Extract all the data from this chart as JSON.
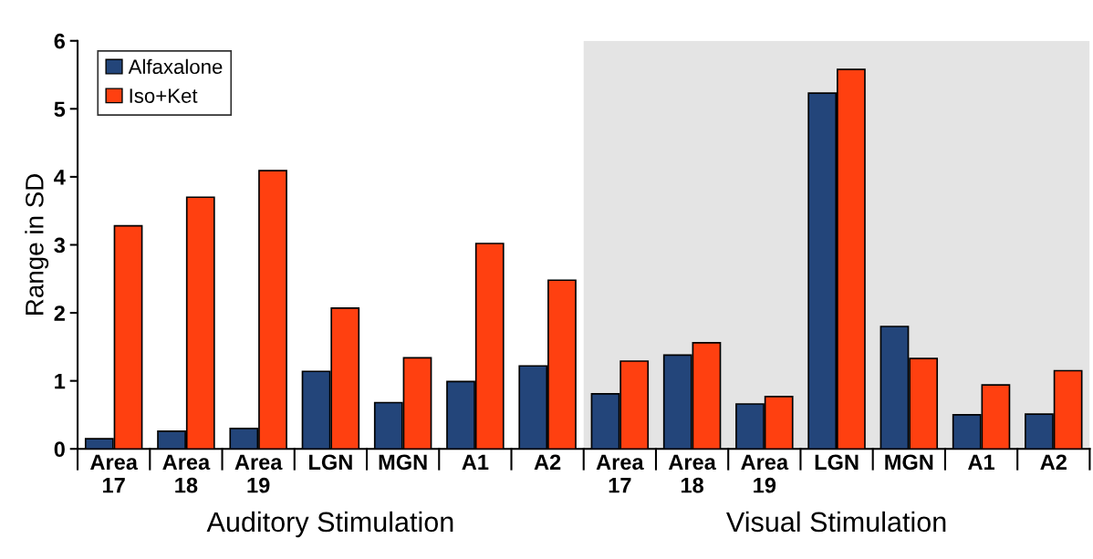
{
  "chart_data": {
    "type": "bar",
    "ylabel": "Range in SD",
    "categories": [
      "Area\n17",
      "Area\n18",
      "Area\n19",
      "LGN",
      "MGN",
      "A1",
      "A2",
      "Area\n17",
      "Area\n18",
      "Area\n19",
      "LGN",
      "MGN",
      "A1",
      "A2"
    ],
    "series": [
      {
        "name": "Alfaxalone",
        "color": "#23457a",
        "values": [
          0.15,
          0.26,
          0.3,
          1.14,
          0.68,
          0.99,
          1.22,
          0.81,
          1.38,
          0.66,
          5.23,
          1.8,
          0.5,
          0.51
        ]
      },
      {
        "name": "Iso+Ket",
        "color": "#ff4010",
        "values": [
          3.28,
          3.7,
          4.09,
          2.07,
          1.34,
          3.02,
          2.48,
          1.29,
          1.56,
          0.77,
          5.58,
          1.33,
          0.94,
          1.15
        ]
      }
    ],
    "annotations": [
      "Auditory Stimulation",
      "Visual Stimulation"
    ],
    "ylim": [
      0,
      6
    ],
    "yticks": [
      0,
      1,
      2,
      3,
      4,
      5,
      6
    ],
    "legend": "top left",
    "grid": false
  }
}
